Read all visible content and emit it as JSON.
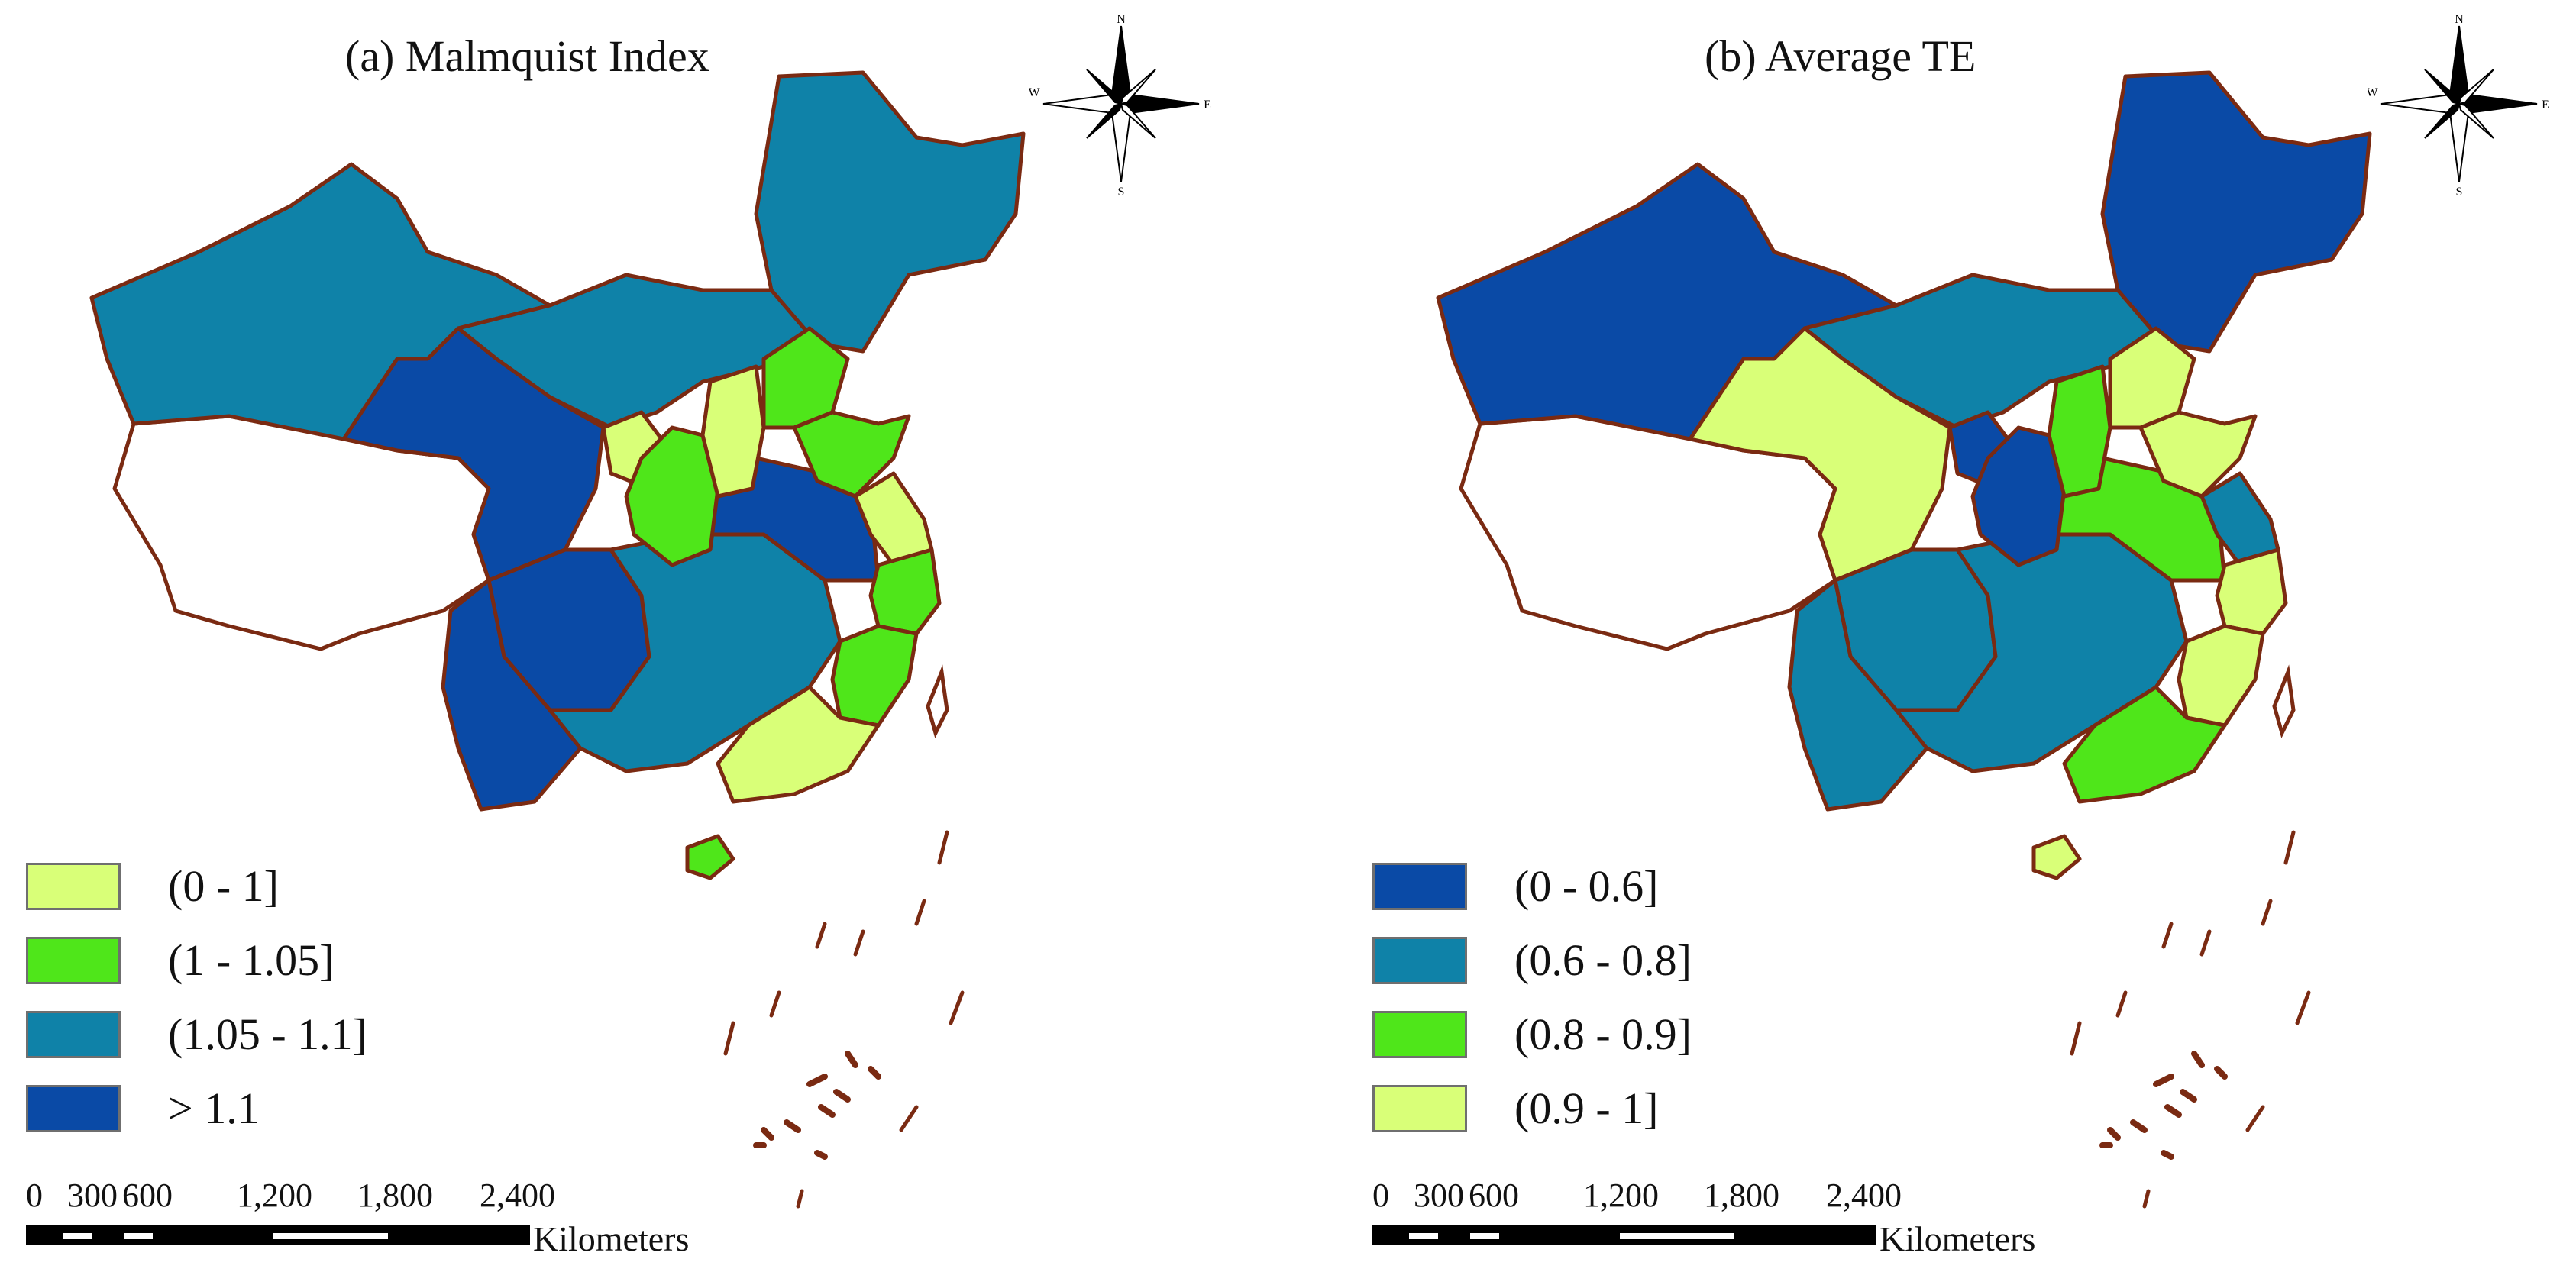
{
  "colors": {
    "light_green": "#d9ff78",
    "green": "#4fe61a",
    "teal": "#0f82a8",
    "dark_blue": "#0a4aa6",
    "border": "#7a2a12",
    "unfilled": "#ffffff"
  },
  "panels": [
    {
      "title": "(a) Malmquist Index",
      "legend": [
        {
          "label": "(0 - 1]",
          "color": "#d9ff78"
        },
        {
          "label": "(1 - 1.05]",
          "color": "#4fe61a"
        },
        {
          "label": "(1.05 - 1.1]",
          "color": "#0f82a8"
        },
        {
          "label": "> 1.1",
          "color": "#0a4aa6"
        }
      ],
      "regions": {
        "northwest": "#0f82a8",
        "northeast": "#0f82a8",
        "north": "#0f82a8",
        "southwest_west": "#0a4aa6",
        "qinghai": "#0a4aa6",
        "tibet": "#ffffff",
        "south_central": "#0f82a8",
        "central": "#0a4aa6",
        "shanxi": "#d9ff78",
        "hebei": "#4fe61a",
        "shandong": "#4fe61a",
        "ningxia": "#d9ff78",
        "gansu_strip": "#4fe61a",
        "jiangsu": "#d9ff78",
        "zhejiang": "#4fe61a",
        "fujian": "#4fe61a",
        "guangdong": "#d9ff78",
        "hainan": "#4fe61a",
        "yunnan": "#0a4aa6"
      }
    },
    {
      "title": "(b) Average TE",
      "legend": [
        {
          "label": "(0 - 0.6]",
          "color": "#0a4aa6"
        },
        {
          "label": "(0.6 - 0.8]",
          "color": "#0f82a8"
        },
        {
          "label": "(0.8 - 0.9]",
          "color": "#4fe61a"
        },
        {
          "label": "(0.9 - 1]",
          "color": "#d9ff78"
        }
      ],
      "regions": {
        "northwest": "#0a4aa6",
        "northeast": "#0a4aa6",
        "north": "#0f82a8",
        "southwest_west": "#0f82a8",
        "qinghai": "#d9ff78",
        "tibet": "#ffffff",
        "south_central": "#0f82a8",
        "central": "#4fe61a",
        "shanxi": "#4fe61a",
        "hebei": "#d9ff78",
        "shandong": "#d9ff78",
        "ningxia": "#0a4aa6",
        "gansu_strip": "#0a4aa6",
        "jiangsu": "#0f82a8",
        "zhejiang": "#d9ff78",
        "fujian": "#d9ff78",
        "guangdong": "#4fe61a",
        "hainan": "#d9ff78",
        "yunnan": "#0f82a8"
      }
    }
  ],
  "compass": {
    "n": "N",
    "s": "S",
    "e": "E",
    "w": "W",
    "icon": "compass-rose-icon"
  },
  "scale": {
    "ticks": [
      "0",
      "300",
      "600",
      "1,200",
      "1,800",
      "2,400"
    ],
    "units": "Kilometers"
  }
}
